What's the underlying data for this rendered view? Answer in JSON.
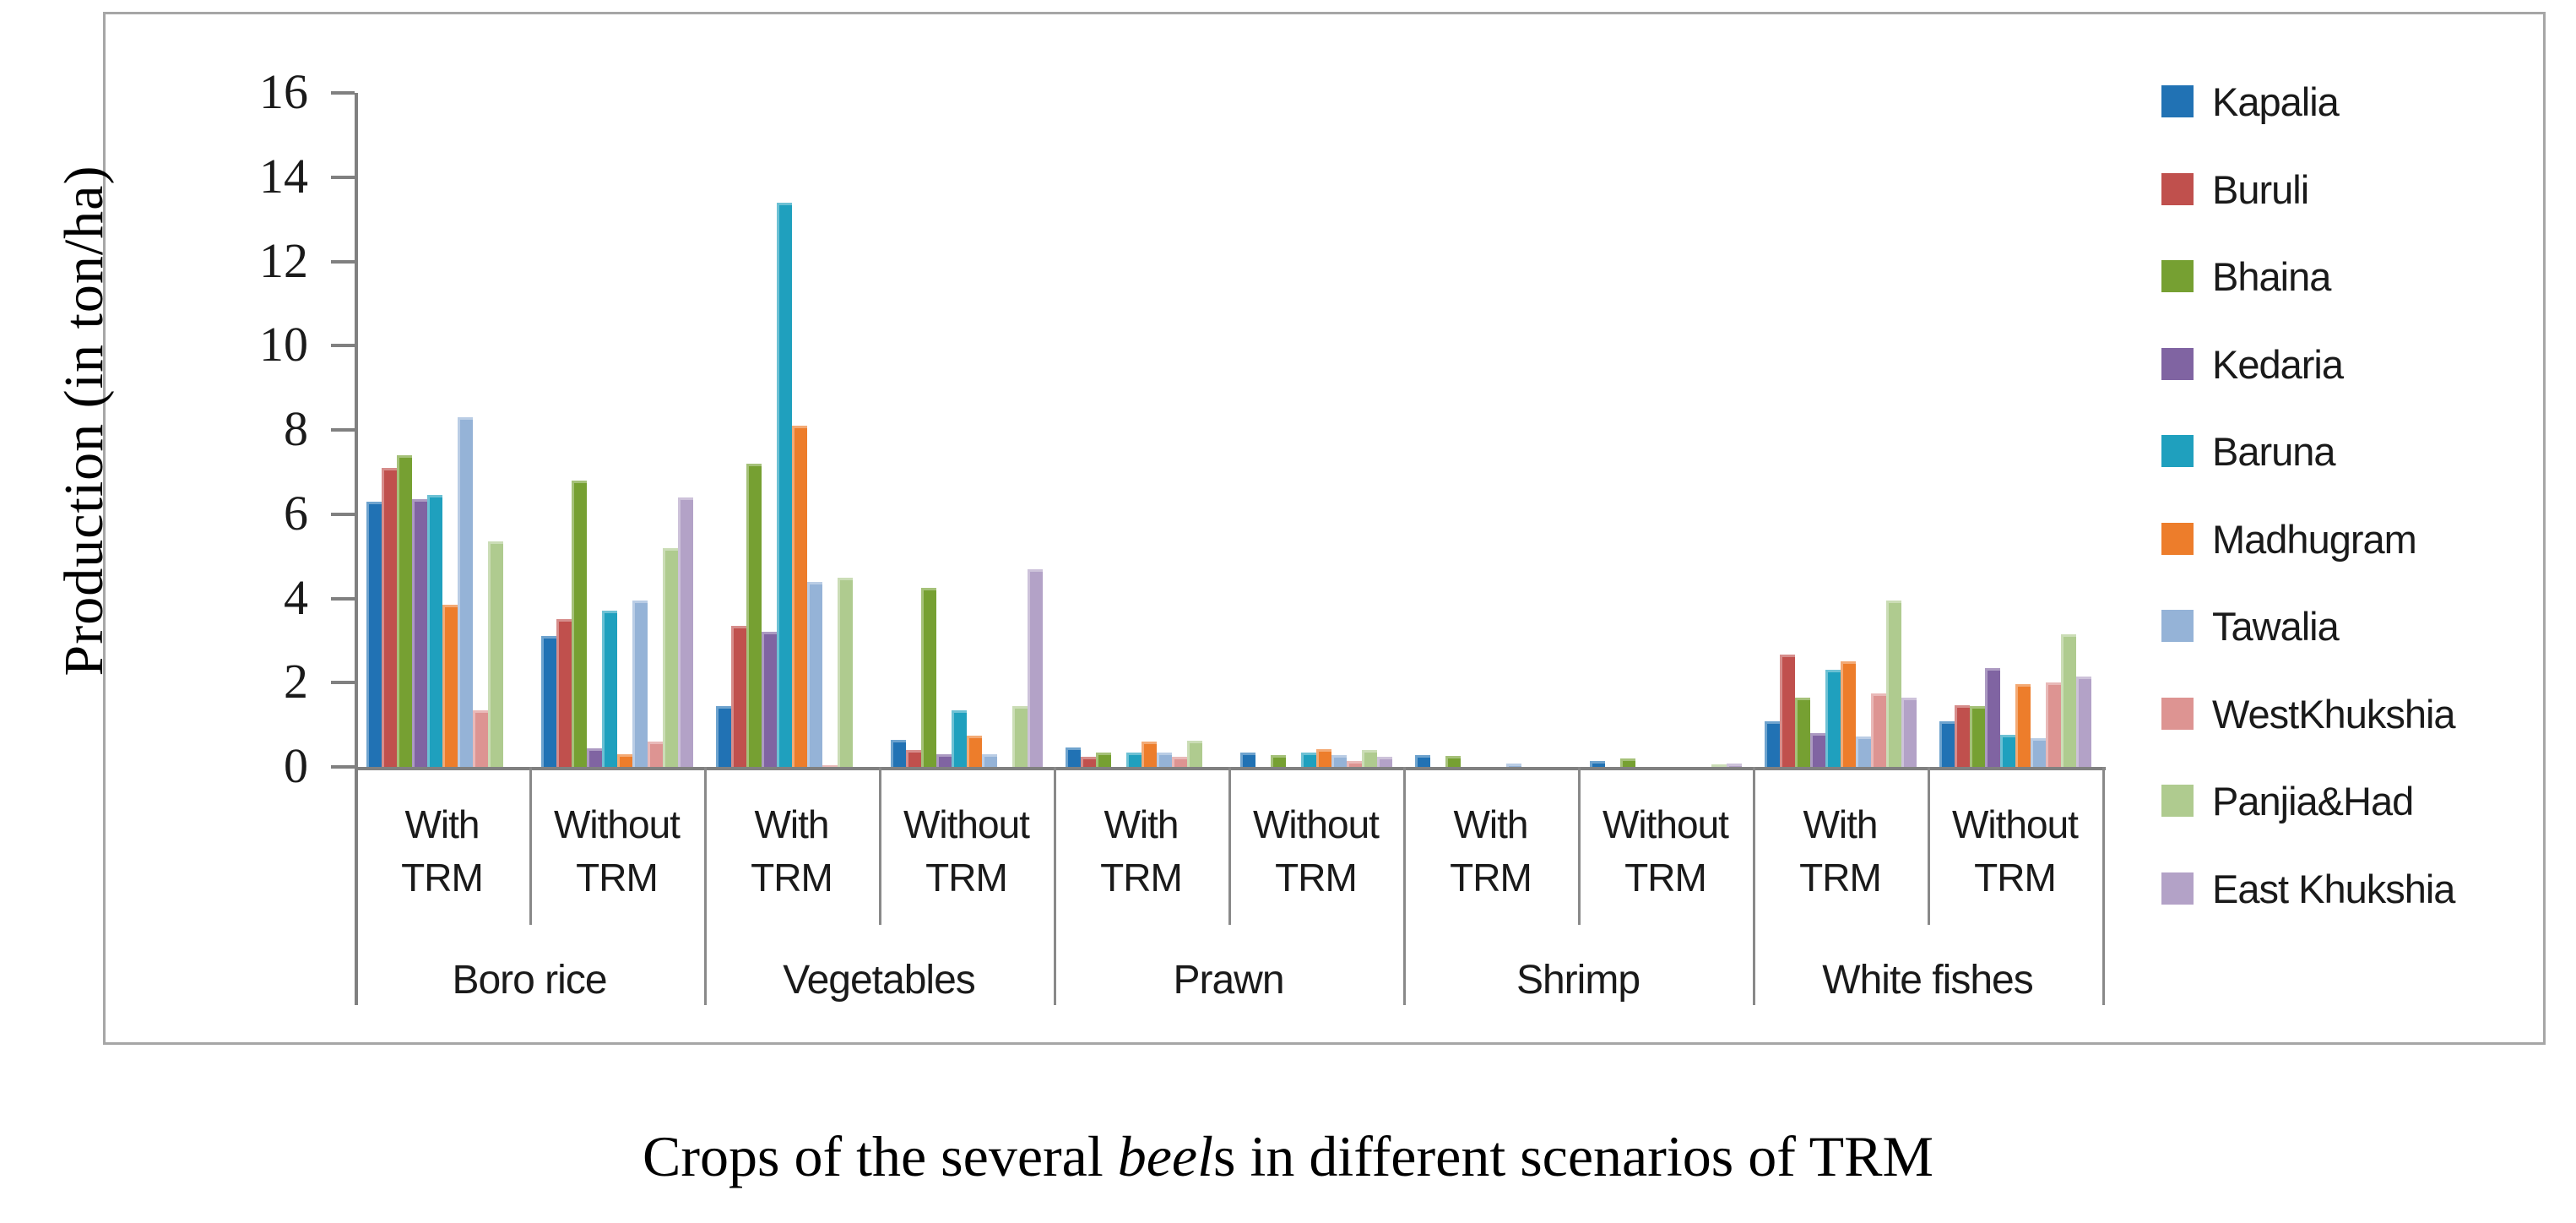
{
  "figure": {
    "y_axis_title": "Production (in ton/ha)",
    "caption_parts": [
      {
        "text": "Crops of the several ",
        "italic": false
      },
      {
        "text": "beel",
        "italic": true
      },
      {
        "text": "s in different scenarios of TRM",
        "italic": false
      }
    ]
  },
  "colors": {
    "axis": "#808080",
    "frame": "#a6a6a6",
    "text": "#1a1a1a"
  },
  "chart_data": {
    "type": "bar",
    "title": "",
    "xlabel": "Crops of the several beels in different scenarios of TRM",
    "ylabel": "Production (in ton/ha)",
    "ylim": [
      0,
      16
    ],
    "yticks": [
      16,
      14,
      12,
      10,
      8,
      6,
      4,
      2,
      0
    ],
    "grid": false,
    "legend_position": "right",
    "crop_groups": [
      "Boro rice",
      "Vegetables",
      "Prawn",
      "Shrimp",
      "White fishes"
    ],
    "scenarios": [
      "With TRM",
      "Without TRM"
    ],
    "categories": [
      "Boro rice With TRM",
      "Boro rice Without TRM",
      "Vegetables With TRM",
      "Vegetables Without TRM",
      "Prawn With TRM",
      "Prawn Without TRM",
      "Shrimp With TRM",
      "Shrimp Without TRM",
      "White fishes With TRM",
      "White fishes Without TRM"
    ],
    "series": [
      {
        "name": "Kapalia",
        "color": "#2172b4",
        "values": [
          6.3,
          3.1,
          1.45,
          0.65,
          0.46,
          0.34,
          0.29,
          0.15,
          1.08,
          1.08
        ]
      },
      {
        "name": "Buruli",
        "color": "#c0504d",
        "values": [
          7.1,
          3.5,
          3.35,
          0.4,
          0.24,
          0,
          0,
          0,
          2.67,
          1.47
        ]
      },
      {
        "name": "Bhaina",
        "color": "#76a032",
        "values": [
          7.4,
          6.8,
          7.2,
          4.25,
          0.34,
          0.28,
          0.27,
          0.2,
          1.65,
          1.45
        ]
      },
      {
        "name": "Kedaria",
        "color": "#8064a2",
        "values": [
          6.35,
          0.45,
          3.2,
          0.3,
          0,
          0,
          0,
          0,
          0.81,
          2.35
        ]
      },
      {
        "name": "Baruna",
        "color": "#1fa0be",
        "values": [
          6.45,
          3.7,
          13.4,
          1.35,
          0.35,
          0.35,
          0,
          0,
          2.3,
          0.77
        ]
      },
      {
        "name": "Madhugram",
        "color": "#ed7d2b",
        "values": [
          3.85,
          0.3,
          8.1,
          0.75,
          0.61,
          0.43,
          0,
          0,
          2.5,
          1.97
        ]
      },
      {
        "name": "Tawalia",
        "color": "#95b3d7",
        "values": [
          8.3,
          3.95,
          4.4,
          0.3,
          0.34,
          0.28,
          0.09,
          0,
          0.73,
          0.68
        ]
      },
      {
        "name": "WestKhukshia",
        "color": "#dd9492",
        "values": [
          1.35,
          0.6,
          0.05,
          0,
          0.25,
          0.15,
          0,
          0,
          1.75,
          2.01
        ]
      },
      {
        "name": "Panjia&Had",
        "color": "#afcb8f",
        "values": [
          5.35,
          5.2,
          4.5,
          1.45,
          0.62,
          0.41,
          0,
          0.06,
          3.95,
          3.15
        ]
      },
      {
        "name": "East Khukshia",
        "color": "#b3a2c7",
        "values": [
          0,
          6.4,
          0,
          4.7,
          0,
          0.24,
          0,
          0.08,
          1.65,
          2.15
        ]
      }
    ]
  }
}
